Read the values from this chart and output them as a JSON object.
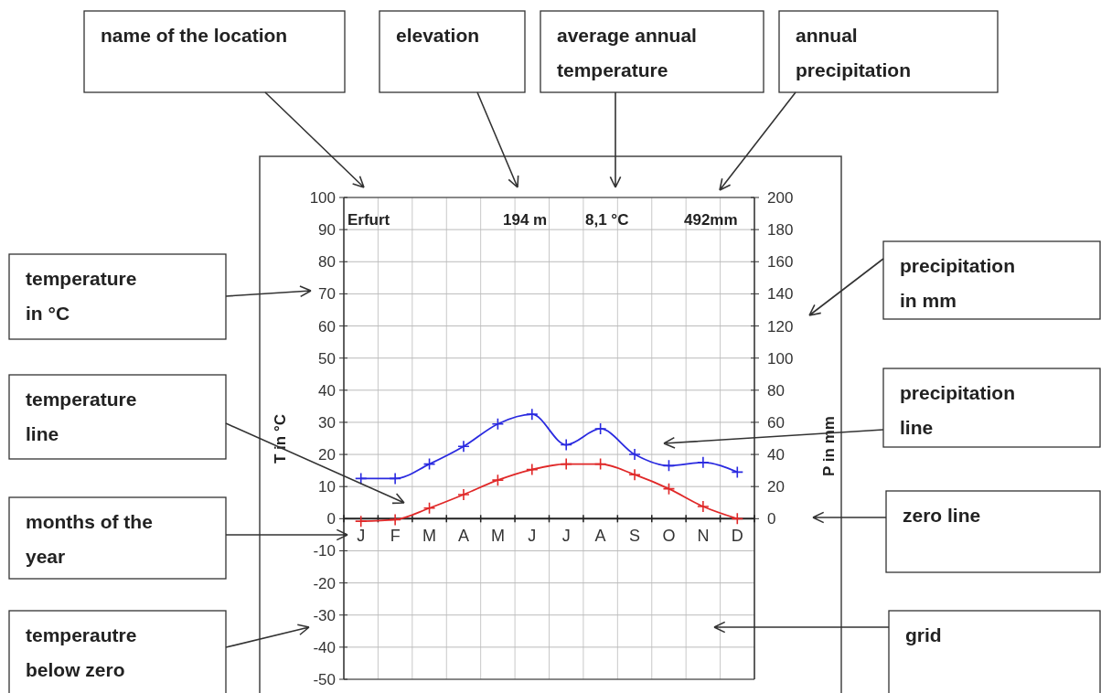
{
  "chart_data": {
    "type": "line",
    "categories": [
      "J",
      "F",
      "M",
      "A",
      "M",
      "J",
      "J",
      "A",
      "S",
      "O",
      "N",
      "D"
    ],
    "series": [
      {
        "color": "#e02828",
        "values": [
          -0.8,
          -0.3,
          3.3,
          7.5,
          12,
          15.3,
          17,
          17,
          13.7,
          9.3,
          3.8,
          0
        ]
      },
      {
        "color": "#2a2ae0",
        "axis": "y2",
        "values": [
          25,
          25,
          34,
          45,
          59,
          65,
          46,
          56,
          40,
          33,
          35,
          29
        ]
      }
    ],
    "ylabel": "T in °C",
    "y2label": "P in mm",
    "ylim": [
      -50,
      100
    ],
    "yticks": [
      -50,
      -40,
      -30,
      -20,
      -10,
      0,
      10,
      20,
      30,
      40,
      50,
      60,
      70,
      80,
      90,
      100
    ],
    "y2lim": [
      -100,
      200
    ],
    "y2ticks": [
      0,
      20,
      40,
      60,
      80,
      100,
      120,
      140,
      160,
      180,
      200
    ],
    "grid": true,
    "marker": "cross",
    "line_style": "solid",
    "annotations": [
      "Erfurt",
      "194 m",
      "8,1 °C",
      "492mm",
      "name of the location",
      "elevation",
      "average annual\ntemperature",
      "annual\nprecipitation",
      "temperature\nin °C",
      "precipitation\nin mm",
      "temperature\nline",
      "precipitation\nline",
      "months of the\nyear",
      "zero line",
      "temperautre\nbelow zero",
      "grid"
    ]
  }
}
